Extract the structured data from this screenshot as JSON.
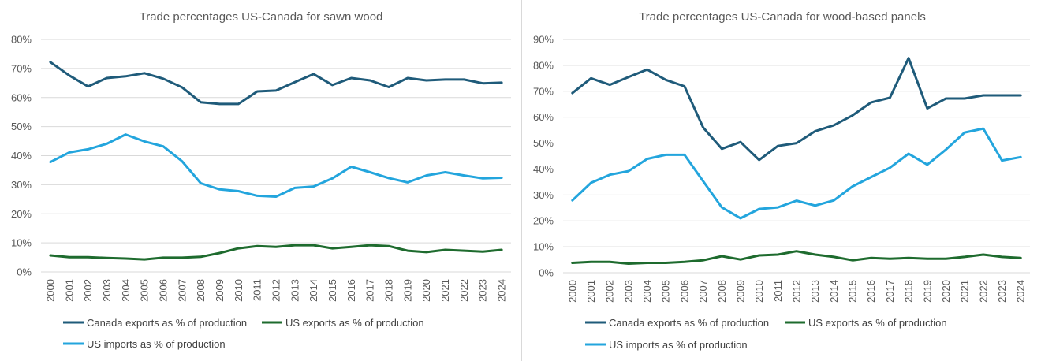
{
  "colors": {
    "canada_exports": "#1f5b7a",
    "us_exports": "#1e6b2e",
    "us_imports": "#23a5dd",
    "grid": "#d9d9d9",
    "text": "#595959"
  },
  "chart_data": [
    {
      "type": "line",
      "title": "Trade percentages US-Canada for sawn wood",
      "x": [
        "2000",
        "2001",
        "2002",
        "2003",
        "2004",
        "2005",
        "2006",
        "2007",
        "2008",
        "2009",
        "2010",
        "2011",
        "2012",
        "2013",
        "2014",
        "2015",
        "2016",
        "2017",
        "2018",
        "2019",
        "2020",
        "2021",
        "2022",
        "2023",
        "2024"
      ],
      "ylim": [
        0,
        80
      ],
      "yticks": [
        0,
        10,
        20,
        30,
        40,
        50,
        60,
        70,
        80
      ],
      "yticklabels": [
        "0%",
        "10%",
        "20%",
        "30%",
        "40%",
        "50%",
        "60%",
        "70%",
        "80%"
      ],
      "grid": true,
      "legend_placement": "bottom",
      "series": [
        {
          "name": "Canada exports as % of production",
          "color_key": "canada_exports",
          "values": [
            72.2,
            67.6,
            63.8,
            66.7,
            67.3,
            68.4,
            66.5,
            63.5,
            58.4,
            57.8,
            57.8,
            62.1,
            62.4,
            65.3,
            68.1,
            64.3,
            66.7,
            65.9,
            63.6,
            66.7,
            65.9,
            66.2,
            66.2,
            64.9,
            65.1
          ]
        },
        {
          "name": "US exports as % of production",
          "color_key": "us_exports",
          "values": [
            5.7,
            5.1,
            5.1,
            4.8,
            4.6,
            4.3,
            4.9,
            4.9,
            5.2,
            6.5,
            8.1,
            8.9,
            8.6,
            9.2,
            9.2,
            8.1,
            8.6,
            9.2,
            8.9,
            7.3,
            6.8,
            7.6,
            7.3,
            7.0,
            7.6
          ]
        },
        {
          "name": "US imports as % of production",
          "color_key": "us_imports",
          "values": [
            37.8,
            41.1,
            42.2,
            44.1,
            47.3,
            44.9,
            43.2,
            38.1,
            30.5,
            28.4,
            27.8,
            26.2,
            25.9,
            28.9,
            29.4,
            32.2,
            36.2,
            34.3,
            32.3,
            30.8,
            33.2,
            34.3,
            33.2,
            32.2,
            32.4
          ]
        }
      ]
    },
    {
      "type": "line",
      "title": "Trade percentages US-Canada for wood-based panels",
      "x": [
        "2000",
        "2001",
        "2002",
        "2003",
        "2004",
        "2005",
        "2006",
        "2007",
        "2008",
        "2009",
        "2010",
        "2011",
        "2012",
        "2013",
        "2014",
        "2015",
        "2016",
        "2017",
        "2018",
        "2019",
        "2020",
        "2021",
        "2022",
        "2023",
        "2024"
      ],
      "ylim": [
        0,
        90
      ],
      "yticks": [
        0,
        10,
        20,
        30,
        40,
        50,
        60,
        70,
        80,
        90
      ],
      "yticklabels": [
        "0%",
        "10%",
        "20%",
        "30%",
        "40%",
        "50%",
        "60%",
        "70%",
        "80%",
        "90%"
      ],
      "grid": true,
      "legend_placement": "bottom",
      "series": [
        {
          "name": "Canada exports as % of production",
          "color_key": "canada_exports",
          "values": [
            69.3,
            75.0,
            72.5,
            75.5,
            78.4,
            74.4,
            71.9,
            56.0,
            47.8,
            50.4,
            43.5,
            48.9,
            50.0,
            54.6,
            56.9,
            60.7,
            65.7,
            67.5,
            82.8,
            63.4,
            67.2,
            67.2,
            68.4,
            68.4,
            68.4
          ]
        },
        {
          "name": "US exports as % of production",
          "color_key": "us_exports",
          "values": [
            3.8,
            4.2,
            4.2,
            3.5,
            3.8,
            3.8,
            4.2,
            4.8,
            6.4,
            5.1,
            6.7,
            7.0,
            8.3,
            7.0,
            6.1,
            4.8,
            5.7,
            5.4,
            5.7,
            5.4,
            5.4,
            6.1,
            7.0,
            6.1,
            5.7
          ]
        },
        {
          "name": "US imports as % of production",
          "color_key": "us_imports",
          "values": [
            27.9,
            34.7,
            37.8,
            39.2,
            43.9,
            45.5,
            45.5,
            35.3,
            25.2,
            21.0,
            24.6,
            25.2,
            27.8,
            25.9,
            27.9,
            33.3,
            36.9,
            40.5,
            45.9,
            41.7,
            47.5,
            54.1,
            55.6,
            43.3,
            44.6
          ]
        }
      ]
    }
  ]
}
